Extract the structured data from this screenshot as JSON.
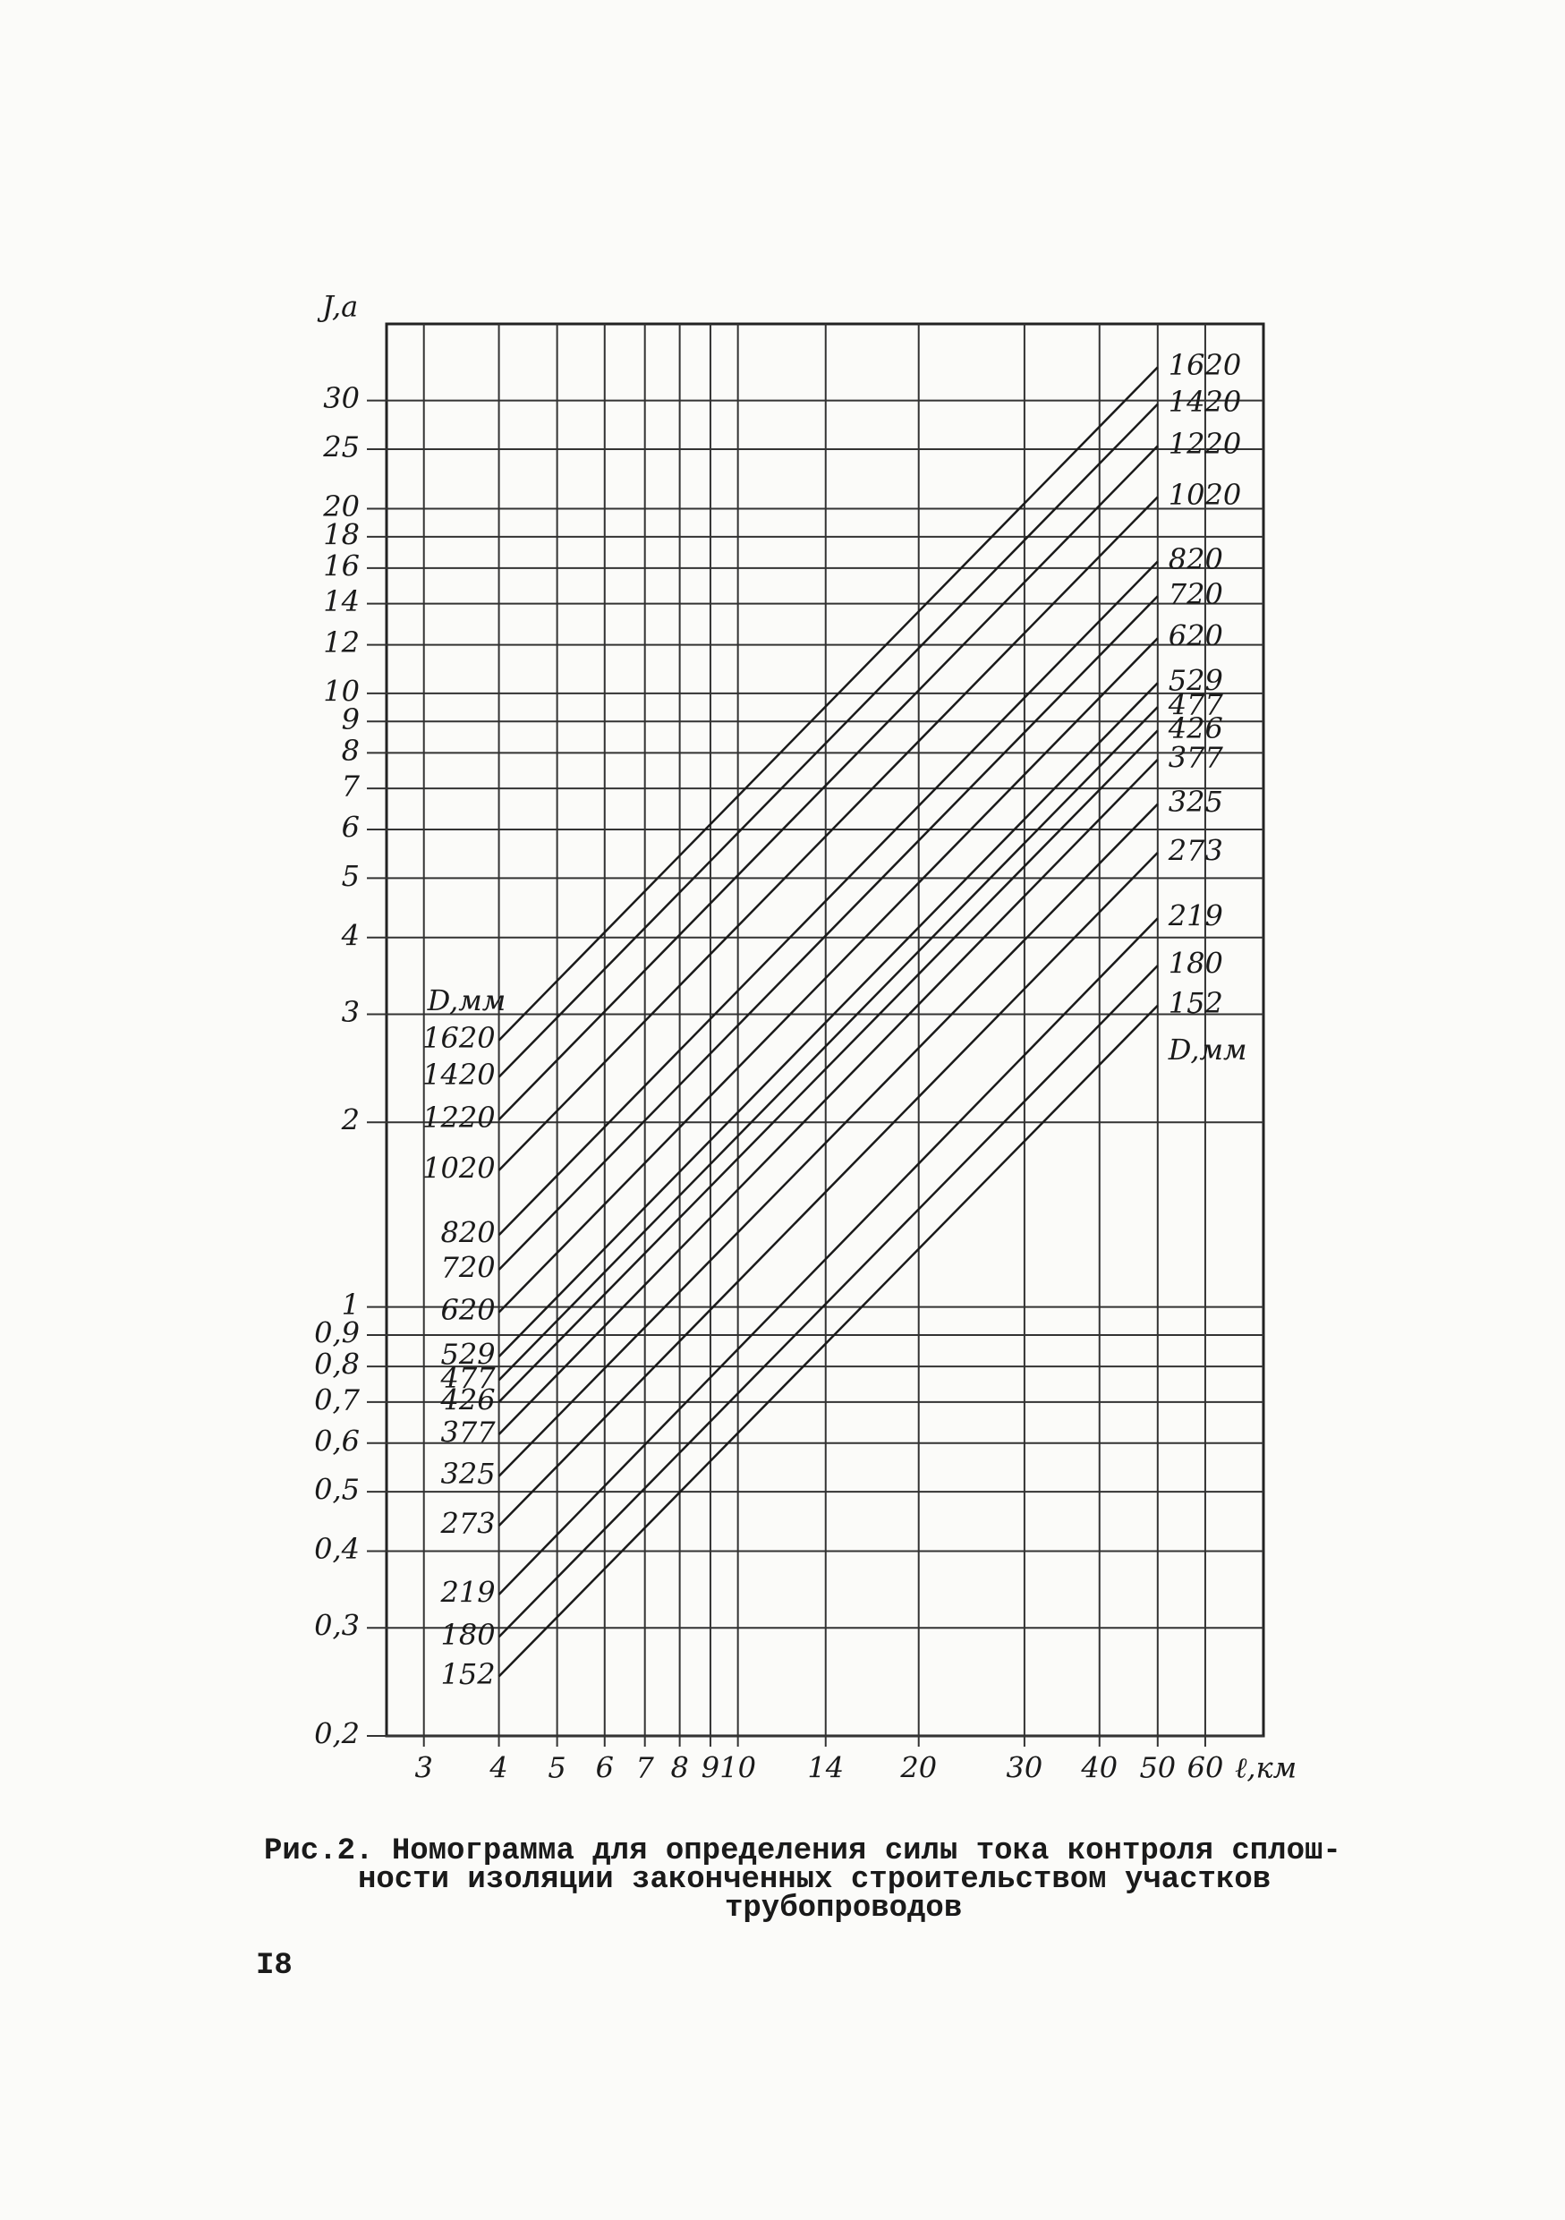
{
  "chart_data": {
    "type": "line",
    "y_label": "J,a",
    "x_label": "ℓ,км",
    "left_header": "D,мм",
    "right_header": "D,мм",
    "xscale": "log",
    "yscale": "log",
    "grid": true,
    "color": "#1a1a1a",
    "xlim": [
      2.6,
      75
    ],
    "ylim": [
      0.2,
      40
    ],
    "xticks": [
      3,
      4,
      5,
      6,
      7,
      8,
      9,
      10,
      14,
      20,
      30,
      40,
      50,
      60
    ],
    "yticks": [
      {
        "value": 0.2,
        "label": "0,2"
      },
      {
        "value": 0.3,
        "label": "0,3"
      },
      {
        "value": 0.4,
        "label": "0,4"
      },
      {
        "value": 0.5,
        "label": "0,5"
      },
      {
        "value": 0.6,
        "label": "0,6"
      },
      {
        "value": 0.7,
        "label": "0,7"
      },
      {
        "value": 0.8,
        "label": "0,8"
      },
      {
        "value": 0.9,
        "label": "0,9"
      },
      1,
      2,
      3,
      4,
      5,
      6,
      7,
      8,
      9,
      10,
      12,
      14,
      16,
      18,
      20,
      25,
      30
    ],
    "x": [
      4,
      50
    ],
    "series": [
      {
        "name": "1620",
        "values": [
          2.72,
          34
        ]
      },
      {
        "name": "1420",
        "values": [
          2.37,
          29.6
        ]
      },
      {
        "name": "1220",
        "values": [
          2.02,
          25.3
        ]
      },
      {
        "name": "1020",
        "values": [
          1.67,
          20.9
        ]
      },
      {
        "name": "820",
        "values": [
          1.31,
          16.4
        ]
      },
      {
        "name": "720",
        "values": [
          1.15,
          14.4
        ]
      },
      {
        "name": "620",
        "values": [
          0.98,
          12.3
        ]
      },
      {
        "name": "529",
        "values": [
          0.83,
          10.4
        ]
      },
      {
        "name": "477",
        "values": [
          0.76,
          9.5
        ]
      },
      {
        "name": "426",
        "values": [
          0.7,
          8.7
        ]
      },
      {
        "name": "377",
        "values": [
          0.62,
          7.8
        ]
      },
      {
        "name": "325",
        "values": [
          0.53,
          6.6
        ]
      },
      {
        "name": "273",
        "values": [
          0.44,
          5.5
        ]
      },
      {
        "name": "219",
        "values": [
          0.34,
          4.3
        ]
      },
      {
        "name": "180",
        "values": [
          0.29,
          3.6
        ]
      },
      {
        "name": "152",
        "values": [
          0.25,
          3.1
        ]
      }
    ]
  },
  "caption": [
    "Рис.2. Номограмма для определения силы тока контроля сплош-",
    "ности изоляции законченных строительством участков",
    "трубопроводов"
  ],
  "page_number": "I8"
}
